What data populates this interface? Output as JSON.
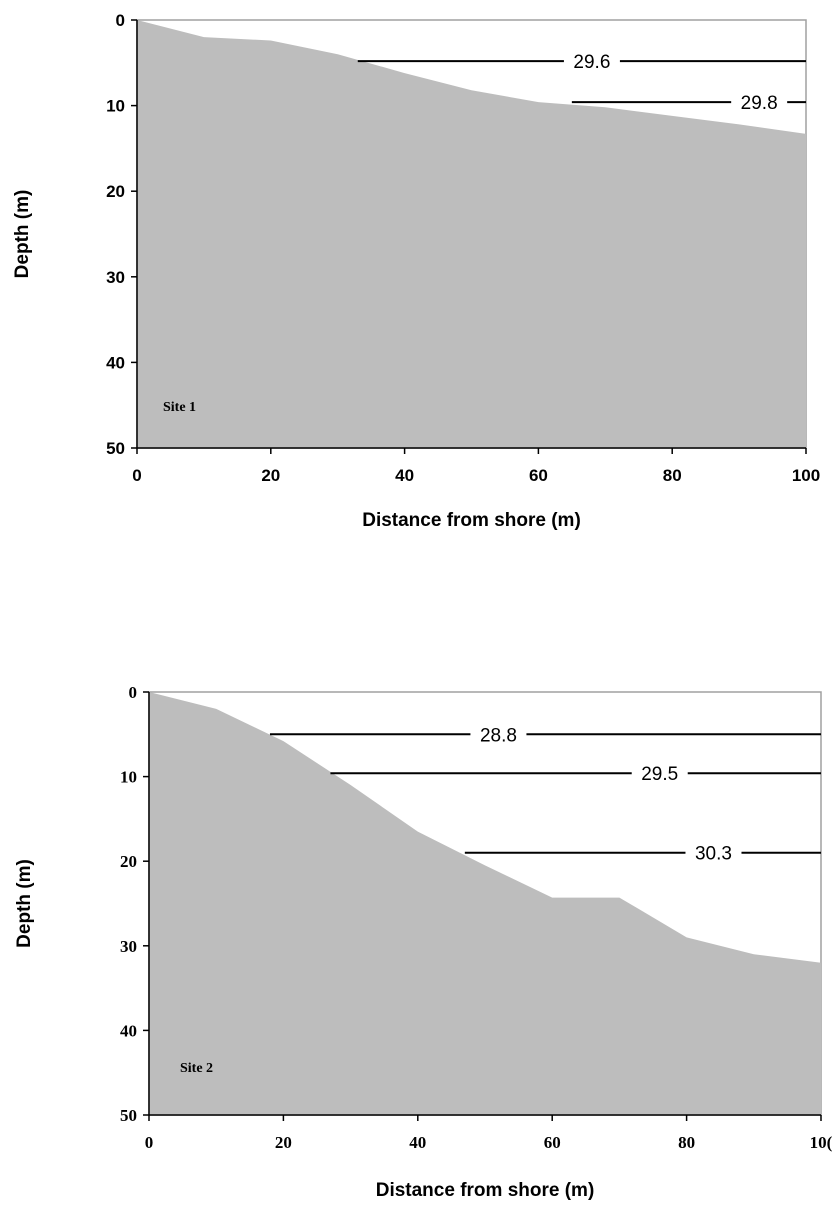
{
  "chart_data": [
    {
      "type": "area",
      "site_label": "Site 1",
      "xlabel": "Distance from shore (m)",
      "ylabel": "Depth (m)",
      "xlim": [
        0,
        100
      ],
      "ylim": [
        0,
        50
      ],
      "y_inverted": true,
      "x_ticks": [
        "0",
        "20",
        "40",
        "60",
        "80",
        "100"
      ],
      "y_ticks": [
        "0",
        "10",
        "20",
        "30",
        "40",
        "50"
      ],
      "tick_font": "sans",
      "fill_color": "#bdbdbd",
      "grid": false,
      "x": [
        0,
        10,
        20,
        30,
        40,
        50,
        60,
        70,
        80,
        90,
        100
      ],
      "depth": [
        0,
        2,
        2.4,
        4,
        6.2,
        8.2,
        9.6,
        10.2,
        11.2,
        12.2,
        13.3
      ],
      "isotherms": [
        {
          "label": "29.6",
          "depth": 4.8,
          "x_start": 33,
          "x_end": 100,
          "label_x": 68
        },
        {
          "label": "29.8",
          "depth": 9.6,
          "x_start": 65,
          "x_end": 100,
          "label_x": 93
        }
      ]
    },
    {
      "type": "area",
      "site_label": "Site 2",
      "xlabel": "Distance from shore (m)",
      "ylabel": "Depth (m)",
      "xlim": [
        0,
        100
      ],
      "ylim": [
        0,
        50
      ],
      "y_inverted": true,
      "x_ticks": [
        "0",
        "20",
        "40",
        "60",
        "80",
        "10("
      ],
      "y_ticks": [
        "0",
        "10",
        "20",
        "30",
        "40",
        "50"
      ],
      "tick_font": "serif",
      "fill_color": "#bdbdbd",
      "grid": false,
      "x": [
        0,
        10,
        20,
        30,
        40,
        50,
        60,
        70,
        80,
        90,
        100
      ],
      "depth": [
        0,
        2,
        5.8,
        11,
        16.5,
        20.5,
        24.3,
        24.3,
        29,
        31,
        32
      ],
      "isotherms": [
        {
          "label": "28.8",
          "depth": 5,
          "x_start": 18,
          "x_end": 100,
          "label_x": 52
        },
        {
          "label": "29.5",
          "depth": 9.6,
          "x_start": 27,
          "x_end": 100,
          "label_x": 76
        },
        {
          "label": "30.3",
          "depth": 19,
          "x_start": 47,
          "x_end": 100,
          "label_x": 84
        }
      ]
    }
  ]
}
